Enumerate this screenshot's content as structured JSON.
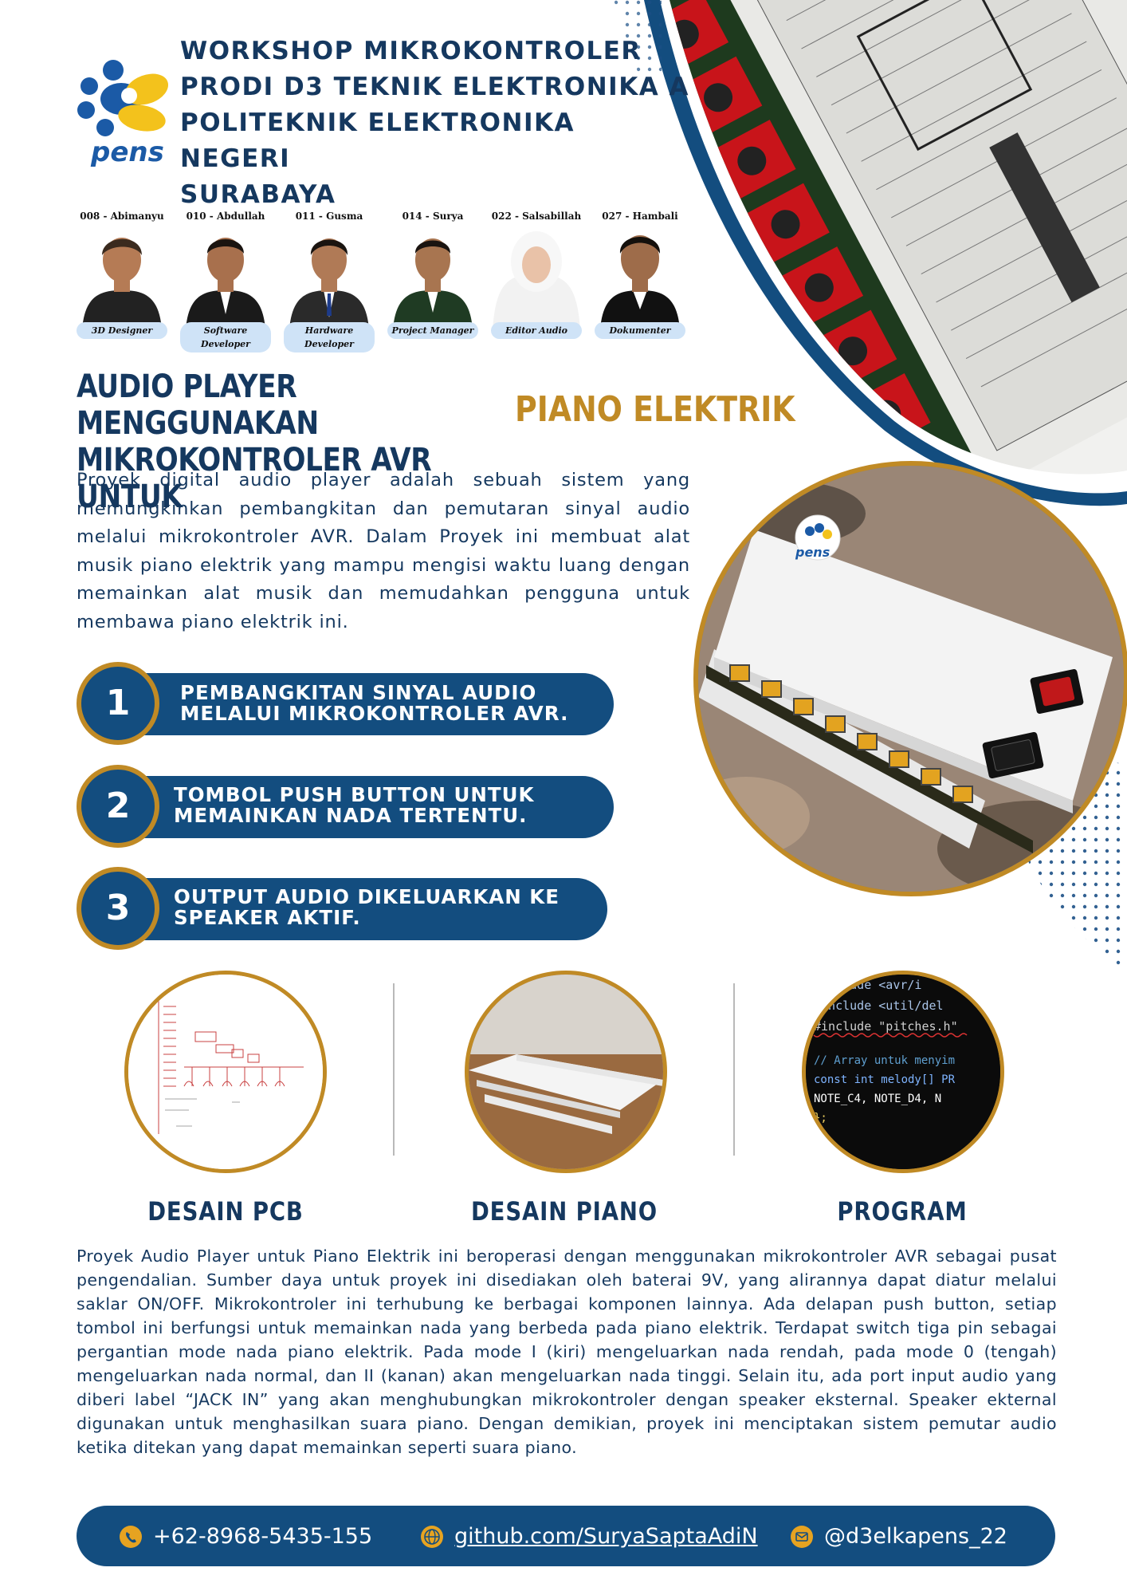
{
  "header": {
    "line1": "WORKSHOP MIKROKONTROLER",
    "line2": "PRODI D3 TEKNIK ELEKTRONIKA A",
    "line3": "POLITEKNIK ELEKTRONIKA NEGERI",
    "line4": "SURABAYA",
    "logo_text": "pens"
  },
  "team": [
    {
      "name": "008 - Abimanyu",
      "role": "3D Designer"
    },
    {
      "name": "010 - Abdullah",
      "role": "Software Developer"
    },
    {
      "name": "011 - Gusma",
      "role": "Hardware Developer"
    },
    {
      "name": "014 - Surya",
      "role": "Project Manager"
    },
    {
      "name": "022 - Salsabillah",
      "role": "Editor Audio"
    },
    {
      "name": "027 - Hambali",
      "role": "Dokumenter"
    }
  ],
  "title": {
    "line1": "AUDIO PLAYER MENGGUNAKAN",
    "line2": "MIKROKONTROLER AVR UNTUK",
    "accent": "PIANO ELEKTRIK"
  },
  "intro": "Proyek digital audio player adalah sebuah sistem yang memungkinkan pembangkitan dan pemutaran sinyal audio melalui mikrokontroler AVR. Dalam Proyek ini membuat alat musik piano elektrik yang mampu mengisi waktu luang dengan memainkan alat musik dan memudahkan pengguna untuk membawa piano elektrik ini.",
  "steps": [
    {
      "number": "1",
      "line1": "PEMBANGKITAN SINYAL AUDIO",
      "line2": "MELALUI MIKROKONTROLER AVR."
    },
    {
      "number": "2",
      "line1": "TOMBOL PUSH BUTTON UNTUK",
      "line2": "MEMAINKAN NADA TERTENTU."
    },
    {
      "number": "3",
      "line1": "OUTPUT AUDIO DIKELUARKAN KE",
      "line2": "SPEAKER AKTIF."
    }
  ],
  "gallery": [
    {
      "label": "DESAIN PCB"
    },
    {
      "label": "DESAIN PIANO"
    },
    {
      "label": "PROGRAM"
    }
  ],
  "code_lines": [
    "#include <avr/i",
    "#include <util/del",
    "#include \"pitches.h\"",
    "",
    "// Array untuk menyim",
    "const int melody[] PR",
    "  NOTE_C4, NOTE_D4, N",
    "};"
  ],
  "body": "Proyek Audio Player untuk Piano Elektrik ini beroperasi dengan menggunakan mikrokontroler AVR sebagai pusat pengendalian. Sumber daya untuk proyek ini disediakan oleh baterai 9V, yang alirannya dapat diatur melalui saklar ON/OFF. Mikrokontroler ini terhubung ke berbagai komponen lainnya. Ada delapan push button, setiap tombol ini berfungsi untuk memainkan nada yang berbeda pada piano elektrik. Terdapat switch tiga pin sebagai pergantian mode nada piano elektrik. Pada mode I (kiri) mengeluarkan nada rendah, pada mode 0 (tengah) mengeluarkan nada normal, dan II (kanan) akan mengeluarkan nada tinggi. Selain itu, ada port input audio yang diberi label “JACK IN” yang akan menghubungkan mikrokontroler dengan speaker eksternal. Speaker ekternal digunakan untuk menghasilkan suara piano. Dengan demikian, proyek ini menciptakan sistem pemutar audio ketika ditekan yang dapat memainkan seperti suara piano.",
  "footer": {
    "phone": "+62-8968-5435-155",
    "github": "github.com/SuryaSaptaAdiN",
    "instagram": "@d3elkapens_22",
    "phone_icon": "phone-icon",
    "github_icon": "globe-icon",
    "instagram_icon": "mail-icon"
  },
  "colors": {
    "navy": "#15385f",
    "step_blue": "#134d7f",
    "gold": "#c08a25",
    "icon_gold": "#e6a321",
    "pcb_red": "#c8141a",
    "pcb_green": "#1e3a1e"
  }
}
